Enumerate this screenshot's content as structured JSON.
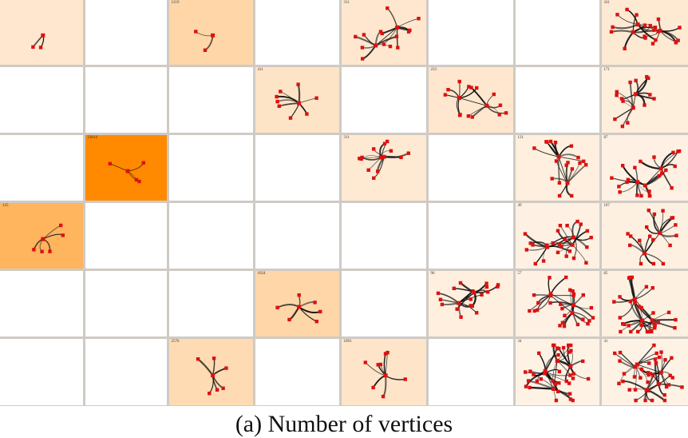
{
  "caption": "(a)  Number of vertices",
  "grid": {
    "rows": 6,
    "cols": 8,
    "cells": [
      {
        "row": 0,
        "col": 0,
        "count": "",
        "level": 0.12,
        "vertices": 2
      },
      {
        "row": 0,
        "col": 2,
        "count": "1219",
        "level": 0.28,
        "vertices": 2
      },
      {
        "row": 0,
        "col": 4,
        "count": "311",
        "level": 0.12,
        "vertices": 14
      },
      {
        "row": 0,
        "col": 7,
        "count": "241",
        "level": 0.1,
        "vertices": 20
      },
      {
        "row": 1,
        "col": 3,
        "count": "411",
        "level": 0.15,
        "vertices": 8
      },
      {
        "row": 1,
        "col": 5,
        "count": "233",
        "level": 0.12,
        "vertices": 14
      },
      {
        "row": 1,
        "col": 7,
        "count": "171",
        "level": 0.06,
        "vertices": 14
      },
      {
        "row": 2,
        "col": 1,
        "count": "23014",
        "level": 1.0,
        "vertices": 4
      },
      {
        "row": 2,
        "col": 4,
        "count": "311",
        "level": 0.1,
        "vertices": 12
      },
      {
        "row": 2,
        "col": 6,
        "count": "121",
        "level": 0.05,
        "vertices": 18
      },
      {
        "row": 2,
        "col": 7,
        "count": "87",
        "level": 0.03,
        "vertices": 22
      },
      {
        "row": 3,
        "col": 0,
        "count": "125",
        "level": 0.6,
        "vertices": 5
      },
      {
        "row": 3,
        "col": 6,
        "count": "49",
        "level": 0.03,
        "vertices": 24
      },
      {
        "row": 3,
        "col": 7,
        "count": "107",
        "level": 0.04,
        "vertices": 18
      },
      {
        "row": 4,
        "col": 3,
        "count": "1024",
        "level": 0.28,
        "vertices": 6
      },
      {
        "row": 4,
        "col": 5,
        "count": "96",
        "level": 0.05,
        "vertices": 18
      },
      {
        "row": 4,
        "col": 6,
        "count": "57",
        "level": 0.03,
        "vertices": 26
      },
      {
        "row": 4,
        "col": 7,
        "count": "85",
        "level": 0.04,
        "vertices": 32
      },
      {
        "row": 5,
        "col": 2,
        "count": "2576",
        "level": 0.24,
        "vertices": 6
      },
      {
        "row": 5,
        "col": 4,
        "count": "1091",
        "level": 0.14,
        "vertices": 8
      },
      {
        "row": 5,
        "col": 6,
        "count": "34",
        "level": 0.02,
        "vertices": 36
      },
      {
        "row": 5,
        "col": 7,
        "count": "41",
        "level": 0.02,
        "vertices": 36
      }
    ]
  },
  "colors": {
    "empty": "#ffffff",
    "low": "#fef4ea",
    "high": "#ff8a00",
    "node": "#dd1111",
    "edge": "#111111"
  }
}
